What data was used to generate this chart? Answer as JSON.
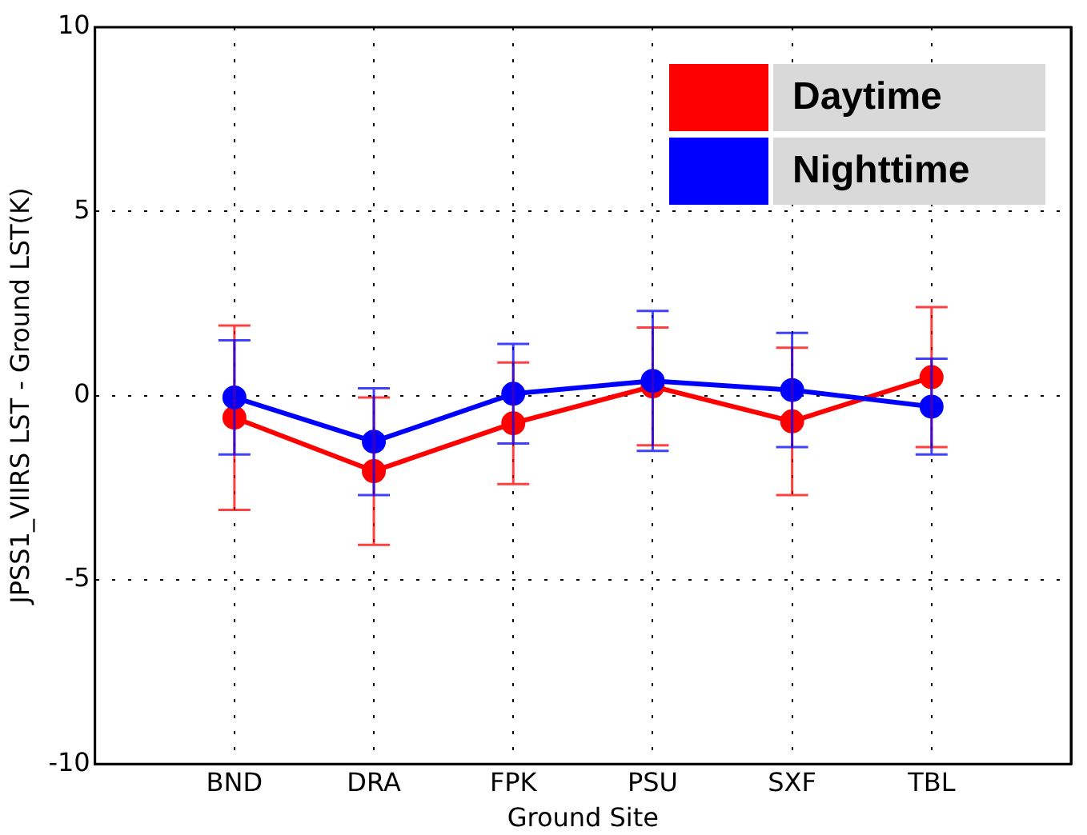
{
  "chart_data": {
    "type": "line",
    "xlabel": "Ground Site",
    "ylabel": "JPSS1_VIIRS LST - Ground LST(K)",
    "categories": [
      "BND",
      "DRA",
      "FPK",
      "PSU",
      "SXF",
      "TBL"
    ],
    "series": [
      {
        "name": "Daytime",
        "color": "#ff0000",
        "values": [
          -0.6,
          -2.05,
          -0.75,
          0.25,
          -0.7,
          0.5
        ],
        "errors": [
          2.5,
          2.0,
          1.65,
          1.6,
          2.0,
          1.9
        ]
      },
      {
        "name": "Nighttime",
        "color": "#0000ff",
        "values": [
          -0.05,
          -1.25,
          0.05,
          0.4,
          0.15,
          -0.3
        ],
        "errors": [
          1.55,
          1.45,
          1.35,
          1.9,
          1.55,
          1.3
        ]
      }
    ],
    "ylim": [
      -10,
      10
    ],
    "yticks": [
      -10,
      -5,
      0,
      5,
      10
    ],
    "grid": true,
    "legend": "top right",
    "marker": "circle",
    "line_style": "solid"
  }
}
